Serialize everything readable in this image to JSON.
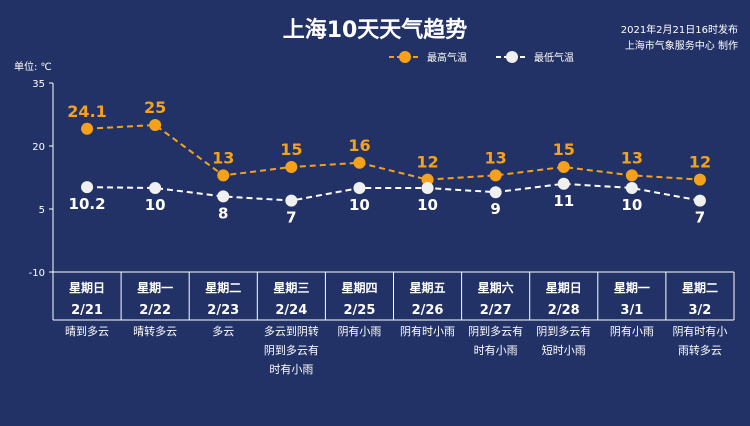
{
  "header": {
    "title": "上海10天天气趋势",
    "publish_time": "2021年2月21日16时发布",
    "publisher": "上海市气象服务中心 制作"
  },
  "chart_data": {
    "type": "line",
    "unit_label": "单位: ℃",
    "ylim": [
      -10,
      35
    ],
    "yticks": [
      35,
      20,
      5,
      -10
    ],
    "grid": false,
    "legend_position": "top-right",
    "days": [
      "星期日",
      "星期一",
      "星期二",
      "星期三",
      "星期四",
      "星期五",
      "星期六",
      "星期日",
      "星期一",
      "星期二"
    ],
    "dates": [
      "2/21",
      "2/22",
      "2/23",
      "2/24",
      "2/25",
      "2/26",
      "2/27",
      "2/28",
      "3/1",
      "3/2"
    ],
    "conditions": [
      [
        "晴到多云"
      ],
      [
        "晴转多云"
      ],
      [
        "多云"
      ],
      [
        "多云到阴转",
        "阴到多云有",
        "时有小雨"
      ],
      [
        "阴有小雨"
      ],
      [
        "阴有时小雨"
      ],
      [
        "阴到多云有",
        "时有小雨"
      ],
      [
        "阴到多云有",
        "短时小雨"
      ],
      [
        "阴有小雨"
      ],
      [
        "阴有时有小",
        "雨转多云"
      ]
    ],
    "series": [
      {
        "name": "最高气温",
        "color": "#f5a21a",
        "values": [
          24.1,
          25,
          13,
          15,
          16,
          12,
          13,
          15,
          13,
          12
        ],
        "labels": [
          "24.1",
          "25",
          "13",
          "15",
          "16",
          "12",
          "13",
          "15",
          "13",
          "12"
        ]
      },
      {
        "name": "最低气温",
        "color": "#ffffff",
        "values": [
          10.2,
          10,
          8,
          7,
          10,
          10,
          9,
          11,
          10,
          7
        ],
        "labels": [
          "10.2",
          "10",
          "8",
          "7",
          "10",
          "10",
          "9",
          "11",
          "10",
          "7"
        ]
      }
    ]
  }
}
